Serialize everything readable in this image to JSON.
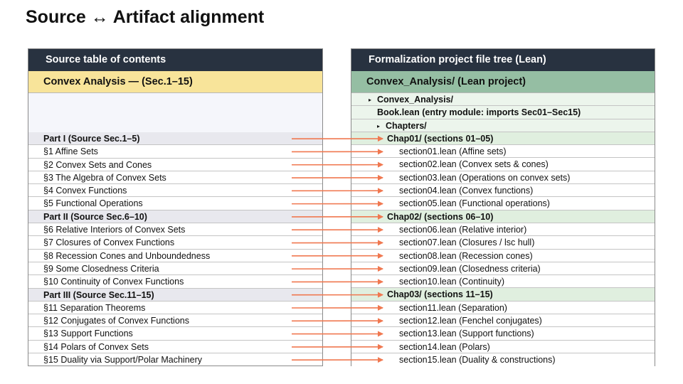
{
  "title": "Source ↔ Artifact alignment",
  "left_panel": {
    "header": "Source table of contents",
    "subheader": "Convex Analysis — (Sec.1–15)",
    "rows": [
      {
        "text": "Part I  (Source Sec.1–5)",
        "type": "part"
      },
      {
        "text": "§1  Affine Sets",
        "type": "section"
      },
      {
        "text": "§2  Convex Sets and Cones",
        "type": "section"
      },
      {
        "text": "§3  The Algebra of Convex Sets",
        "type": "section"
      },
      {
        "text": "§4  Convex Functions",
        "type": "section"
      },
      {
        "text": "§5  Functional Operations",
        "type": "section"
      },
      {
        "text": "Part II  (Source Sec.6–10)",
        "type": "part"
      },
      {
        "text": "§6  Relative Interiors of Convex Sets",
        "type": "section"
      },
      {
        "text": "§7  Closures of Convex Functions",
        "type": "section"
      },
      {
        "text": "§8  Recession Cones and Unboundedness",
        "type": "section"
      },
      {
        "text": "§9  Some Closedness Criteria",
        "type": "section"
      },
      {
        "text": "§10  Continuity of Convex Functions",
        "type": "section"
      },
      {
        "text": "Part III  (Source Sec.11–15)",
        "type": "part"
      },
      {
        "text": "§11  Separation Theorems",
        "type": "section"
      },
      {
        "text": "§12  Conjugates of Convex Functions",
        "type": "section"
      },
      {
        "text": "§13  Support Functions",
        "type": "section"
      },
      {
        "text": "§14  Polars of Convex Sets",
        "type": "section"
      },
      {
        "text": "§15  Duality via Support/Polar Machinery",
        "type": "section"
      }
    ]
  },
  "right_panel": {
    "header": "Formalization project file tree (Lean)",
    "subheader": "Convex_Analysis/  (Lean project)",
    "rows": [
      {
        "text": "Convex_Analysis/",
        "type": "tree",
        "level": 0,
        "marker": "▸"
      },
      {
        "text": "Book.lean  (entry module: imports Sec01–Sec15)",
        "type": "tree",
        "level": 1,
        "marker": ""
      },
      {
        "text": "Chapters/",
        "type": "tree",
        "level": 1,
        "marker": "▸"
      },
      {
        "text": "Chap01/  (sections 01–05)",
        "type": "chap",
        "level": 2,
        "marker": "▸"
      },
      {
        "text": "section01.lean  (Affine sets)",
        "type": "file",
        "level": 3,
        "marker": ""
      },
      {
        "text": "section02.lean  (Convex sets & cones)",
        "type": "file",
        "level": 3,
        "marker": ""
      },
      {
        "text": "section03.lean  (Operations on convex sets)",
        "type": "file",
        "level": 3,
        "marker": ""
      },
      {
        "text": "section04.lean  (Convex functions)",
        "type": "file",
        "level": 3,
        "marker": ""
      },
      {
        "text": "section05.lean  (Functional operations)",
        "type": "file",
        "level": 3,
        "marker": ""
      },
      {
        "text": "Chap02/  (sections 06–10)",
        "type": "chap",
        "level": 2,
        "marker": "▸"
      },
      {
        "text": "section06.lean  (Relative interior)",
        "type": "file",
        "level": 3,
        "marker": ""
      },
      {
        "text": "section07.lean  (Closures / lsc hull)",
        "type": "file",
        "level": 3,
        "marker": ""
      },
      {
        "text": "section08.lean  (Recession cones)",
        "type": "file",
        "level": 3,
        "marker": ""
      },
      {
        "text": "section09.lean  (Closedness criteria)",
        "type": "file",
        "level": 3,
        "marker": ""
      },
      {
        "text": "section10.lean  (Continuity)",
        "type": "file",
        "level": 3,
        "marker": ""
      },
      {
        "text": "Chap03/  (sections 11–15)",
        "type": "chap",
        "level": 2,
        "marker": "▸"
      },
      {
        "text": "section11.lean  (Separation)",
        "type": "file",
        "level": 3,
        "marker": ""
      },
      {
        "text": "section12.lean  (Fenchel conjugates)",
        "type": "file",
        "level": 3,
        "marker": ""
      },
      {
        "text": "section13.lean  (Support functions)",
        "type": "file",
        "level": 3,
        "marker": ""
      },
      {
        "text": "section14.lean  (Polars)",
        "type": "file",
        "level": 3,
        "marker": ""
      },
      {
        "text": "section15.lean  (Duality & constructions)",
        "type": "file",
        "level": 3,
        "marker": ""
      }
    ]
  },
  "arrow_color": "#f07850"
}
